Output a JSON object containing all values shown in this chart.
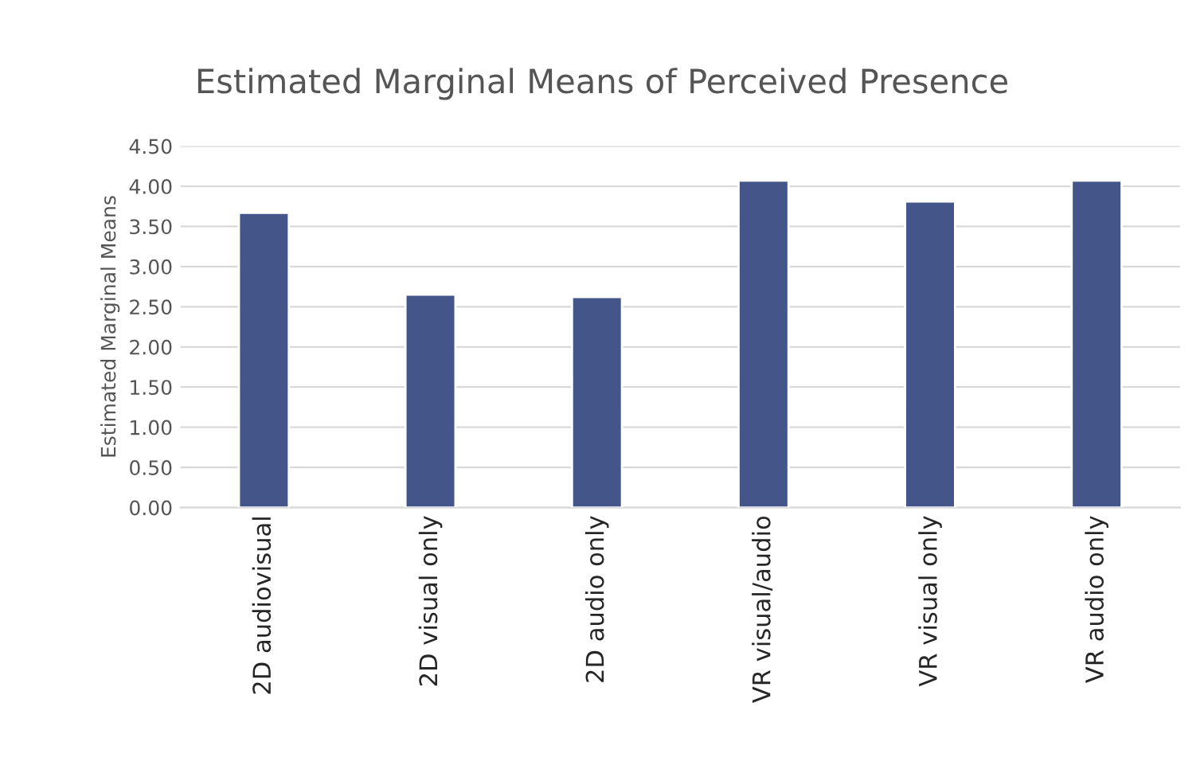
{
  "chart_data": {
    "type": "bar",
    "title": "Estimated Marginal Means of Perceived Presence",
    "ylabel": "Estimated Marginal Means",
    "categories": [
      "2D audiovisual",
      "2D visual only",
      "2D audio only",
      "VR visual/audio",
      "VR visual only",
      "VR audio only"
    ],
    "values": [
      3.67,
      2.65,
      2.62,
      4.07,
      3.81,
      4.07
    ],
    "color": "#44558a",
    "ylim": [
      0,
      4.5
    ],
    "yticks": [
      {
        "value": 0,
        "label": "0.00"
      },
      {
        "value": 0.5,
        "label": "0.50"
      },
      {
        "value": 1,
        "label": "1.00"
      },
      {
        "value": 1.5,
        "label": "1.50"
      },
      {
        "value": 2,
        "label": "2.00"
      },
      {
        "value": 2.5,
        "label": "2.50"
      },
      {
        "value": 3,
        "label": "3.00"
      },
      {
        "value": 3.5,
        "label": "3.50"
      },
      {
        "value": 4,
        "label": "4.00"
      },
      {
        "value": 4.5,
        "label": "4.50"
      }
    ],
    "grid": "y",
    "legend": false
  }
}
